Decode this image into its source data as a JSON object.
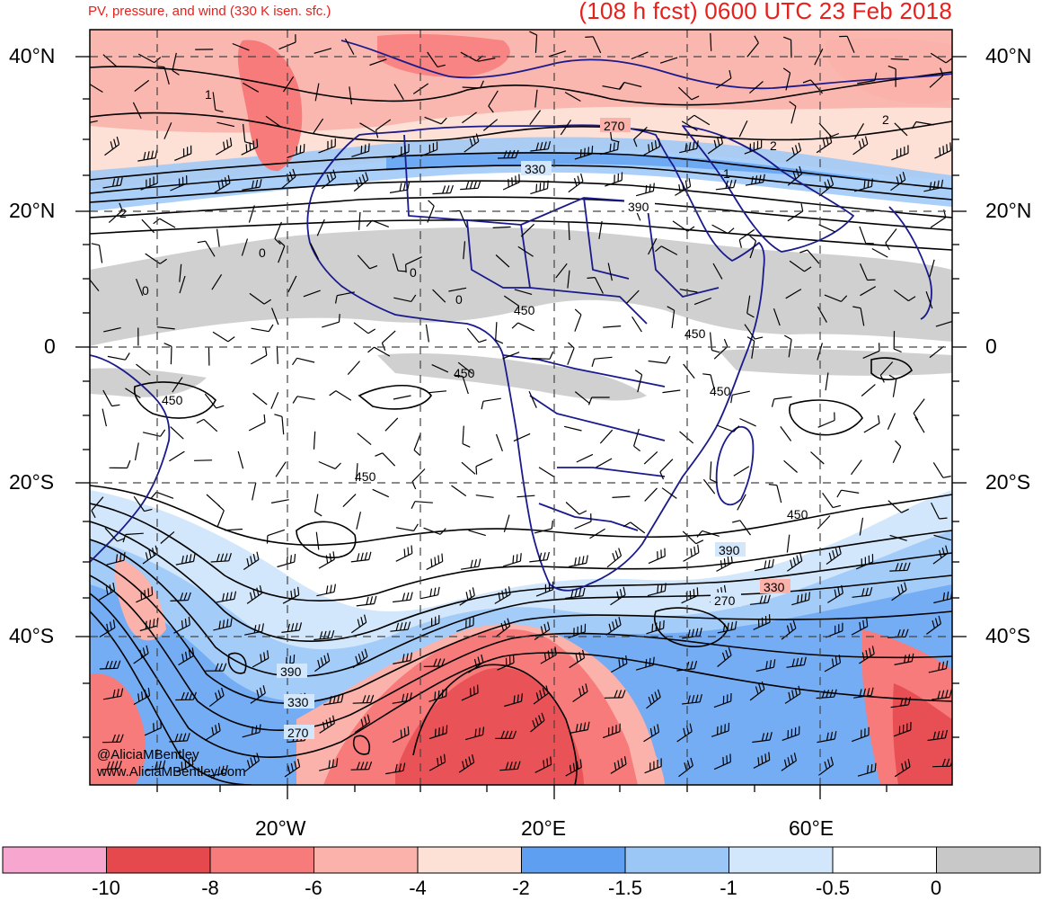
{
  "header": {
    "left_title": "PV, pressure, and wind (330 K isen. sfc.)",
    "right_title": "(108 h fcst) 0600 UTC 23 Feb 2018"
  },
  "lat_labels": [
    "40°N",
    "20°N",
    "0",
    "20°S",
    "40°S"
  ],
  "lon_labels": [
    "20°W",
    "20°E",
    "60°E"
  ],
  "credits": [
    "@AliciaMBentley",
    "www.AliciaMBentley.com"
  ],
  "contour_labels": {
    "pressure": [
      "270",
      "330",
      "390",
      "450",
      "450",
      "450",
      "450",
      "450",
      "450",
      "390",
      "330",
      "270",
      "270",
      "330",
      "390"
    ],
    "pv": [
      "1",
      "2",
      "2",
      "1",
      "0",
      "0",
      "0",
      "0",
      "2"
    ]
  },
  "colorbar": {
    "colors": [
      "#f7a6cf",
      "#e5484d",
      "#f77b7b",
      "#fab2ab",
      "#fde0d6",
      "#5f9ff2",
      "#9bc7f7",
      "#d2e7fb",
      "#ffffff",
      "#c8c8c8"
    ],
    "labels": [
      "-10",
      "-8",
      "-6",
      "-4",
      "-2",
      "-1.5",
      "-1",
      "-0.5",
      "0"
    ]
  },
  "colors": {
    "coast": "#1a1a8c",
    "contour": "#000000",
    "title": "#e8201c"
  }
}
